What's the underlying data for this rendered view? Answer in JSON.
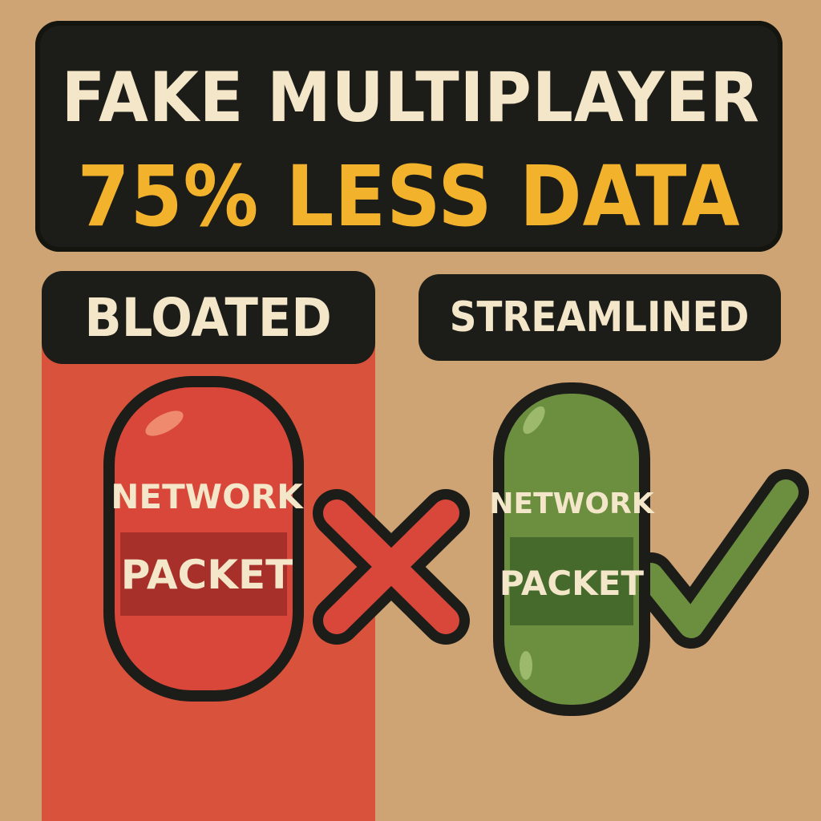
{
  "title": {
    "line1": "FAKE MULTIPLAYER",
    "line2": "75% LESS DATA"
  },
  "left": {
    "label": "BLOATED",
    "pill": {
      "line1": "NETWORK",
      "line2": "PACKET"
    },
    "mark_icon": "cross-icon"
  },
  "right": {
    "label": "STREAMLINED",
    "pill": {
      "line1": "NETWORK",
      "line2": "PACKET"
    },
    "mark_icon": "checkmark-icon"
  },
  "colors": {
    "background": "#cfa474",
    "dark": "#1c1c19",
    "cream": "#f4e6c8",
    "accent_yellow": "#f2b22c",
    "bloated_red": "#d9523b",
    "streamlined_green": "#6b8e3f"
  }
}
